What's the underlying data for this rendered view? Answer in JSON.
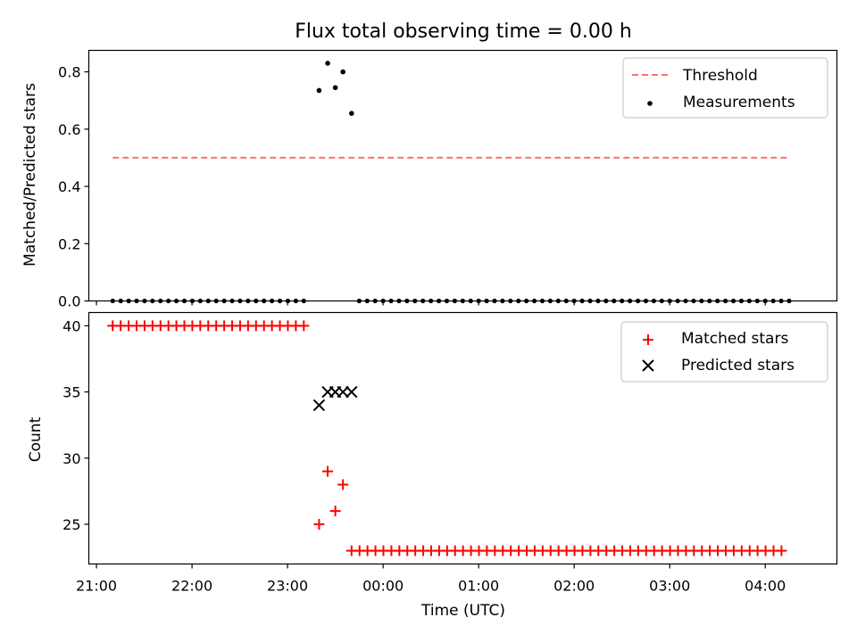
{
  "chart_data": [
    {
      "type": "scatter",
      "title": "Flux total observing time = 0.00 h",
      "xlabel": "",
      "ylabel": "Matched/Predicted stars",
      "xlim_hours": [
        20.92,
        28.75
      ],
      "ylim": [
        0.0,
        0.875
      ],
      "yticks": [
        0.0,
        0.2,
        0.4,
        0.6,
        0.8
      ],
      "ytick_labels": [
        "0.0",
        "0.2",
        "0.4",
        "0.6",
        "0.8"
      ],
      "legend_position": "top-right",
      "series": [
        {
          "name": "Threshold",
          "style": "dashed-line",
          "color": "#ff7070",
          "x_start_hours": 21.17,
          "x_end_hours": 28.25,
          "value": 0.5
        },
        {
          "name": "Measurements",
          "style": "dot",
          "color": "#000000",
          "zero_runs": [
            {
              "start_hours": 21.17,
              "end_hours": 23.17,
              "step_minutes": 5
            },
            {
              "start_hours": 23.75,
              "end_hours": 28.25,
              "step_minutes": 5
            }
          ],
          "points": [
            {
              "x_hours": 23.33,
              "y": 0.735
            },
            {
              "x_hours": 23.42,
              "y": 0.83
            },
            {
              "x_hours": 23.5,
              "y": 0.745
            },
            {
              "x_hours": 23.58,
              "y": 0.8
            },
            {
              "x_hours": 23.67,
              "y": 0.655
            }
          ]
        }
      ]
    },
    {
      "type": "scatter",
      "title": "",
      "xlabel": "Time (UTC)",
      "ylabel": "Count",
      "xlim_hours": [
        20.92,
        28.75
      ],
      "ylim": [
        22.0,
        41.0
      ],
      "yticks": [
        25,
        30,
        35,
        40
      ],
      "ytick_labels": [
        "25",
        "30",
        "35",
        "40"
      ],
      "xticks_hours": [
        21,
        22,
        23,
        24,
        25,
        26,
        27,
        28
      ],
      "xtick_labels": [
        "21:00",
        "22:00",
        "23:00",
        "00:00",
        "01:00",
        "02:00",
        "03:00",
        "04:00"
      ],
      "legend_position": "top-right",
      "series": [
        {
          "name": "Matched stars",
          "style": "plus",
          "color": "#ff0000",
          "runs": [
            {
              "start_hours": 21.17,
              "end_hours": 23.17,
              "step_minutes": 5,
              "value": 40
            },
            {
              "start_hours": 23.67,
              "end_hours": 28.25,
              "step_minutes": 5,
              "value": 23
            }
          ],
          "points": [
            {
              "x_hours": 23.33,
              "y": 25
            },
            {
              "x_hours": 23.42,
              "y": 29
            },
            {
              "x_hours": 23.5,
              "y": 26
            },
            {
              "x_hours": 23.58,
              "y": 28
            }
          ]
        },
        {
          "name": "Predicted stars",
          "style": "x",
          "color": "#000000",
          "points": [
            {
              "x_hours": 23.33,
              "y": 34
            },
            {
              "x_hours": 23.42,
              "y": 35
            },
            {
              "x_hours": 23.5,
              "y": 35
            },
            {
              "x_hours": 23.58,
              "y": 35
            },
            {
              "x_hours": 23.67,
              "y": 35
            }
          ]
        }
      ]
    }
  ]
}
